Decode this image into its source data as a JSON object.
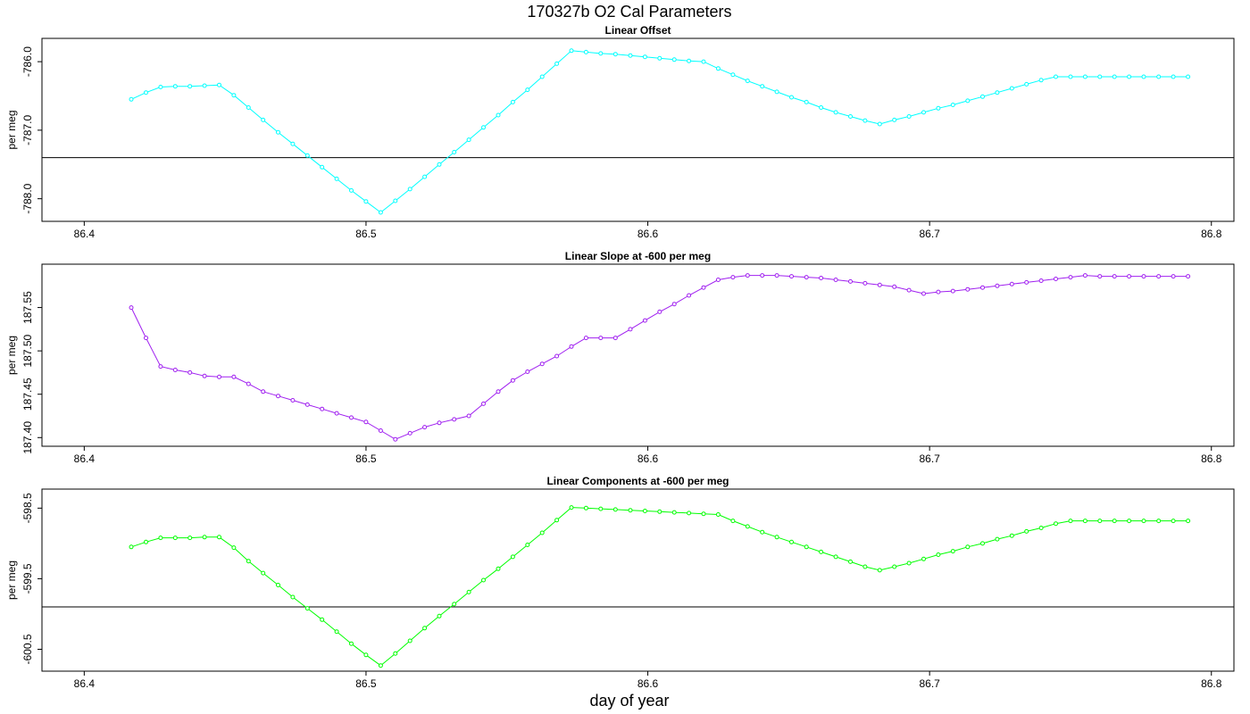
{
  "title": "170327b   O2 Cal Parameters",
  "xlabel": "day of year",
  "chart_data": [
    {
      "type": "line",
      "title": "Linear Offset",
      "ylabel": "per meg",
      "color": "#00FFFF",
      "xlim": [
        86.385,
        86.808
      ],
      "ylim": [
        -788.33,
        -785.66
      ],
      "x_ticks": [
        "86.4",
        "86.5",
        "86.6",
        "86.7",
        "86.8"
      ],
      "y_ticks": [
        "-786.0",
        "-787.0",
        "-788.0"
      ],
      "hline": -787.4,
      "x": [
        86.4167,
        86.4219,
        86.4271,
        86.4323,
        86.4375,
        86.4427,
        86.4479,
        86.4531,
        86.4583,
        86.4635,
        86.4688,
        86.474,
        86.4792,
        86.4844,
        86.4896,
        86.4948,
        86.5,
        86.5052,
        86.5104,
        86.5156,
        86.5208,
        86.526,
        86.5313,
        86.5365,
        86.5417,
        86.5469,
        86.5521,
        86.5573,
        86.5625,
        86.5677,
        86.5729,
        86.5781,
        86.5833,
        86.5885,
        86.5938,
        86.599,
        86.6042,
        86.6094,
        86.6146,
        86.6198,
        86.625,
        86.6302,
        86.6354,
        86.6406,
        86.6458,
        86.651,
        86.6563,
        86.6615,
        86.6667,
        86.6719,
        86.6771,
        86.6823,
        86.6875,
        86.6927,
        86.6979,
        86.7031,
        86.7083,
        86.7135,
        86.7188,
        86.724,
        86.7292,
        86.7344,
        86.7396,
        86.7448,
        86.75,
        86.7552,
        86.7604,
        86.7656,
        86.7708,
        86.776,
        86.7813,
        86.7865,
        86.7917
      ],
      "y": [
        -786.55,
        -786.45,
        -786.37,
        -786.36,
        -786.36,
        -786.35,
        -786.34,
        -786.49,
        -786.67,
        -786.85,
        -787.03,
        -787.2,
        -787.37,
        -787.54,
        -787.71,
        -787.88,
        -788.04,
        -788.2,
        -788.03,
        -787.86,
        -787.68,
        -787.5,
        -787.32,
        -787.14,
        -786.96,
        -786.78,
        -786.59,
        -786.41,
        -786.22,
        -786.03,
        -785.84,
        -785.86,
        -785.88,
        -785.89,
        -785.91,
        -785.93,
        -785.95,
        -785.97,
        -785.99,
        -786.0,
        -786.1,
        -786.19,
        -786.28,
        -786.36,
        -786.44,
        -786.52,
        -786.59,
        -786.67,
        -786.74,
        -786.8,
        -786.86,
        -786.91,
        -786.85,
        -786.8,
        -786.74,
        -786.68,
        -786.63,
        -786.57,
        -786.51,
        -786.45,
        -786.39,
        -786.33,
        -786.27,
        -786.22,
        -786.22,
        -786.22,
        -786.22,
        -786.22,
        -786.22,
        -786.22,
        -786.22,
        -786.22,
        -786.22
      ]
    },
    {
      "type": "line",
      "title": "Linear Slope at -600 per meg",
      "ylabel": "per meg",
      "color": "#A020F0",
      "xlim": [
        86.385,
        86.808
      ],
      "ylim": [
        187.39,
        187.6
      ],
      "x_ticks": [
        "86.4",
        "86.5",
        "86.6",
        "86.7",
        "86.8"
      ],
      "y_ticks": [
        "187.40",
        "187.45",
        "187.50",
        "187.55"
      ],
      "x": [
        86.4167,
        86.4219,
        86.4271,
        86.4323,
        86.4375,
        86.4427,
        86.4479,
        86.4531,
        86.4583,
        86.4635,
        86.4688,
        86.474,
        86.4792,
        86.4844,
        86.4896,
        86.4948,
        86.5,
        86.5052,
        86.5104,
        86.5156,
        86.5208,
        86.526,
        86.5313,
        86.5365,
        86.5417,
        86.5469,
        86.5521,
        86.5573,
        86.5625,
        86.5677,
        86.5729,
        86.5781,
        86.5833,
        86.5885,
        86.5938,
        86.599,
        86.6042,
        86.6094,
        86.6146,
        86.6198,
        86.625,
        86.6302,
        86.6354,
        86.6406,
        86.6458,
        86.651,
        86.6563,
        86.6615,
        86.6667,
        86.6719,
        86.6771,
        86.6823,
        86.6875,
        86.6927,
        86.6979,
        86.7031,
        86.7083,
        86.7135,
        86.7188,
        86.724,
        86.7292,
        86.7344,
        86.7396,
        86.7448,
        86.75,
        86.7552,
        86.7604,
        86.7656,
        86.7708,
        86.776,
        86.7813,
        86.7865,
        86.7917
      ],
      "y": [
        187.55,
        187.515,
        187.482,
        187.478,
        187.475,
        187.471,
        187.47,
        187.47,
        187.462,
        187.453,
        187.448,
        187.443,
        187.438,
        187.433,
        187.428,
        187.423,
        187.418,
        187.408,
        187.398,
        187.405,
        187.412,
        187.417,
        187.421,
        187.425,
        187.439,
        187.453,
        187.466,
        187.476,
        187.485,
        187.494,
        187.505,
        187.515,
        187.515,
        187.515,
        187.525,
        187.535,
        187.545,
        187.554,
        187.564,
        187.573,
        187.582,
        187.585,
        187.587,
        187.587,
        187.587,
        187.586,
        187.585,
        187.584,
        187.582,
        187.58,
        187.578,
        187.576,
        187.574,
        187.57,
        187.566,
        187.568,
        187.569,
        187.571,
        187.573,
        187.575,
        187.577,
        187.579,
        187.581,
        187.583,
        187.585,
        187.587,
        187.586,
        187.586,
        187.586,
        187.586,
        187.586,
        187.586,
        187.586
      ]
    },
    {
      "type": "line",
      "title": "Linear Components at -600 per meg",
      "ylabel": "per meg",
      "color": "#00FF00",
      "xlim": [
        86.385,
        86.808
      ],
      "ylim": [
        -600.81,
        -598.23
      ],
      "x_ticks": [
        "86.4",
        "86.5",
        "86.6",
        "86.7",
        "86.8"
      ],
      "y_ticks": [
        "-598.5",
        "-599.5",
        "-600.5"
      ],
      "hline": -599.9,
      "x": [
        86.4167,
        86.4219,
        86.4271,
        86.4323,
        86.4375,
        86.4427,
        86.4479,
        86.4531,
        86.4583,
        86.4635,
        86.4688,
        86.474,
        86.4792,
        86.4844,
        86.4896,
        86.4948,
        86.5,
        86.5052,
        86.5104,
        86.5156,
        86.5208,
        86.526,
        86.5313,
        86.5365,
        86.5417,
        86.5469,
        86.5521,
        86.5573,
        86.5625,
        86.5677,
        86.5729,
        86.5781,
        86.5833,
        86.5885,
        86.5938,
        86.599,
        86.6042,
        86.6094,
        86.6146,
        86.6198,
        86.625,
        86.6302,
        86.6354,
        86.6406,
        86.6458,
        86.651,
        86.6563,
        86.6615,
        86.6667,
        86.6719,
        86.6771,
        86.6823,
        86.6875,
        86.6927,
        86.6979,
        86.7031,
        86.7083,
        86.7135,
        86.7188,
        86.724,
        86.7292,
        86.7344,
        86.7396,
        86.7448,
        86.75,
        86.7552,
        86.7604,
        86.7656,
        86.7708,
        86.776,
        86.7813,
        86.7865,
        86.7917
      ],
      "y": [
        -599.05,
        -598.98,
        -598.92,
        -598.92,
        -598.92,
        -598.91,
        -598.91,
        -599.06,
        -599.25,
        -599.42,
        -599.59,
        -599.76,
        -599.92,
        -600.08,
        -600.25,
        -600.42,
        -600.58,
        -600.73,
        -600.56,
        -600.38,
        -600.2,
        -600.03,
        -599.86,
        -599.69,
        -599.52,
        -599.36,
        -599.19,
        -599.02,
        -598.85,
        -598.67,
        -598.49,
        -598.5,
        -598.51,
        -598.52,
        -598.53,
        -598.54,
        -598.55,
        -598.56,
        -598.57,
        -598.58,
        -598.59,
        -598.68,
        -598.76,
        -598.84,
        -598.91,
        -598.98,
        -599.05,
        -599.12,
        -599.19,
        -599.26,
        -599.33,
        -599.38,
        -599.33,
        -599.28,
        -599.22,
        -599.16,
        -599.11,
        -599.05,
        -599.0,
        -598.94,
        -598.89,
        -598.83,
        -598.78,
        -598.72,
        -598.68,
        -598.68,
        -598.68,
        -598.68,
        -598.68,
        -598.68,
        -598.68,
        -598.68,
        -598.68
      ]
    }
  ]
}
